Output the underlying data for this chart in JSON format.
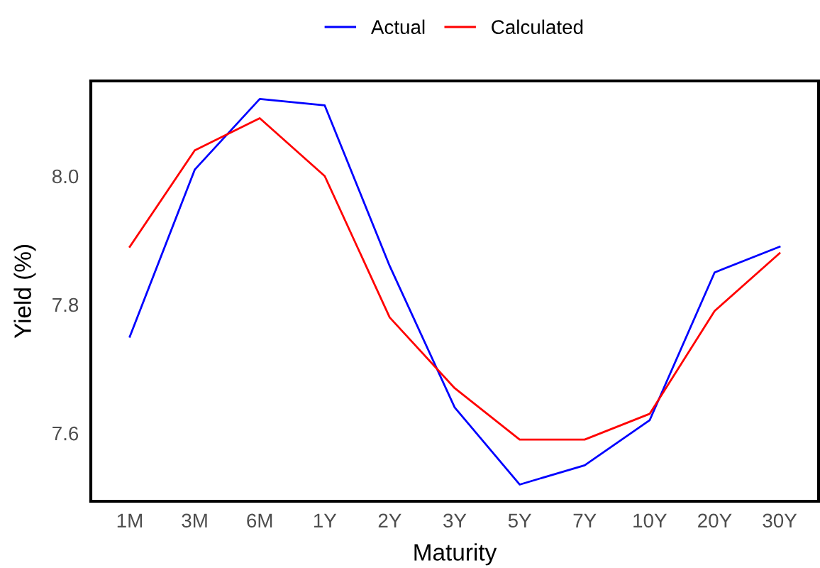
{
  "chart_data": {
    "type": "line",
    "xlabel": "Maturity",
    "ylabel": "Yield (%)",
    "categories": [
      "1M",
      "3M",
      "6M",
      "1Y",
      "2Y",
      "3Y",
      "5Y",
      "7Y",
      "10Y",
      "20Y",
      "30Y"
    ],
    "series": [
      {
        "name": "Actual",
        "color": "#0000ff",
        "values": [
          7.75,
          8.01,
          8.12,
          8.11,
          7.86,
          7.64,
          7.52,
          7.55,
          7.62,
          7.85,
          7.89
        ]
      },
      {
        "name": "Calculated",
        "color": "#ff0000",
        "values": [
          7.89,
          8.04,
          8.09,
          8.0,
          7.78,
          7.67,
          7.59,
          7.59,
          7.63,
          7.79,
          7.88
        ]
      }
    ],
    "ylim": [
      7.494,
      8.148
    ],
    "yticks": [
      7.6,
      7.8,
      {
        "value": 8.0,
        "label": "8.0"
      }
    ],
    "grid": false,
    "legend": "top",
    "marker": "none",
    "line_style": "solid"
  }
}
